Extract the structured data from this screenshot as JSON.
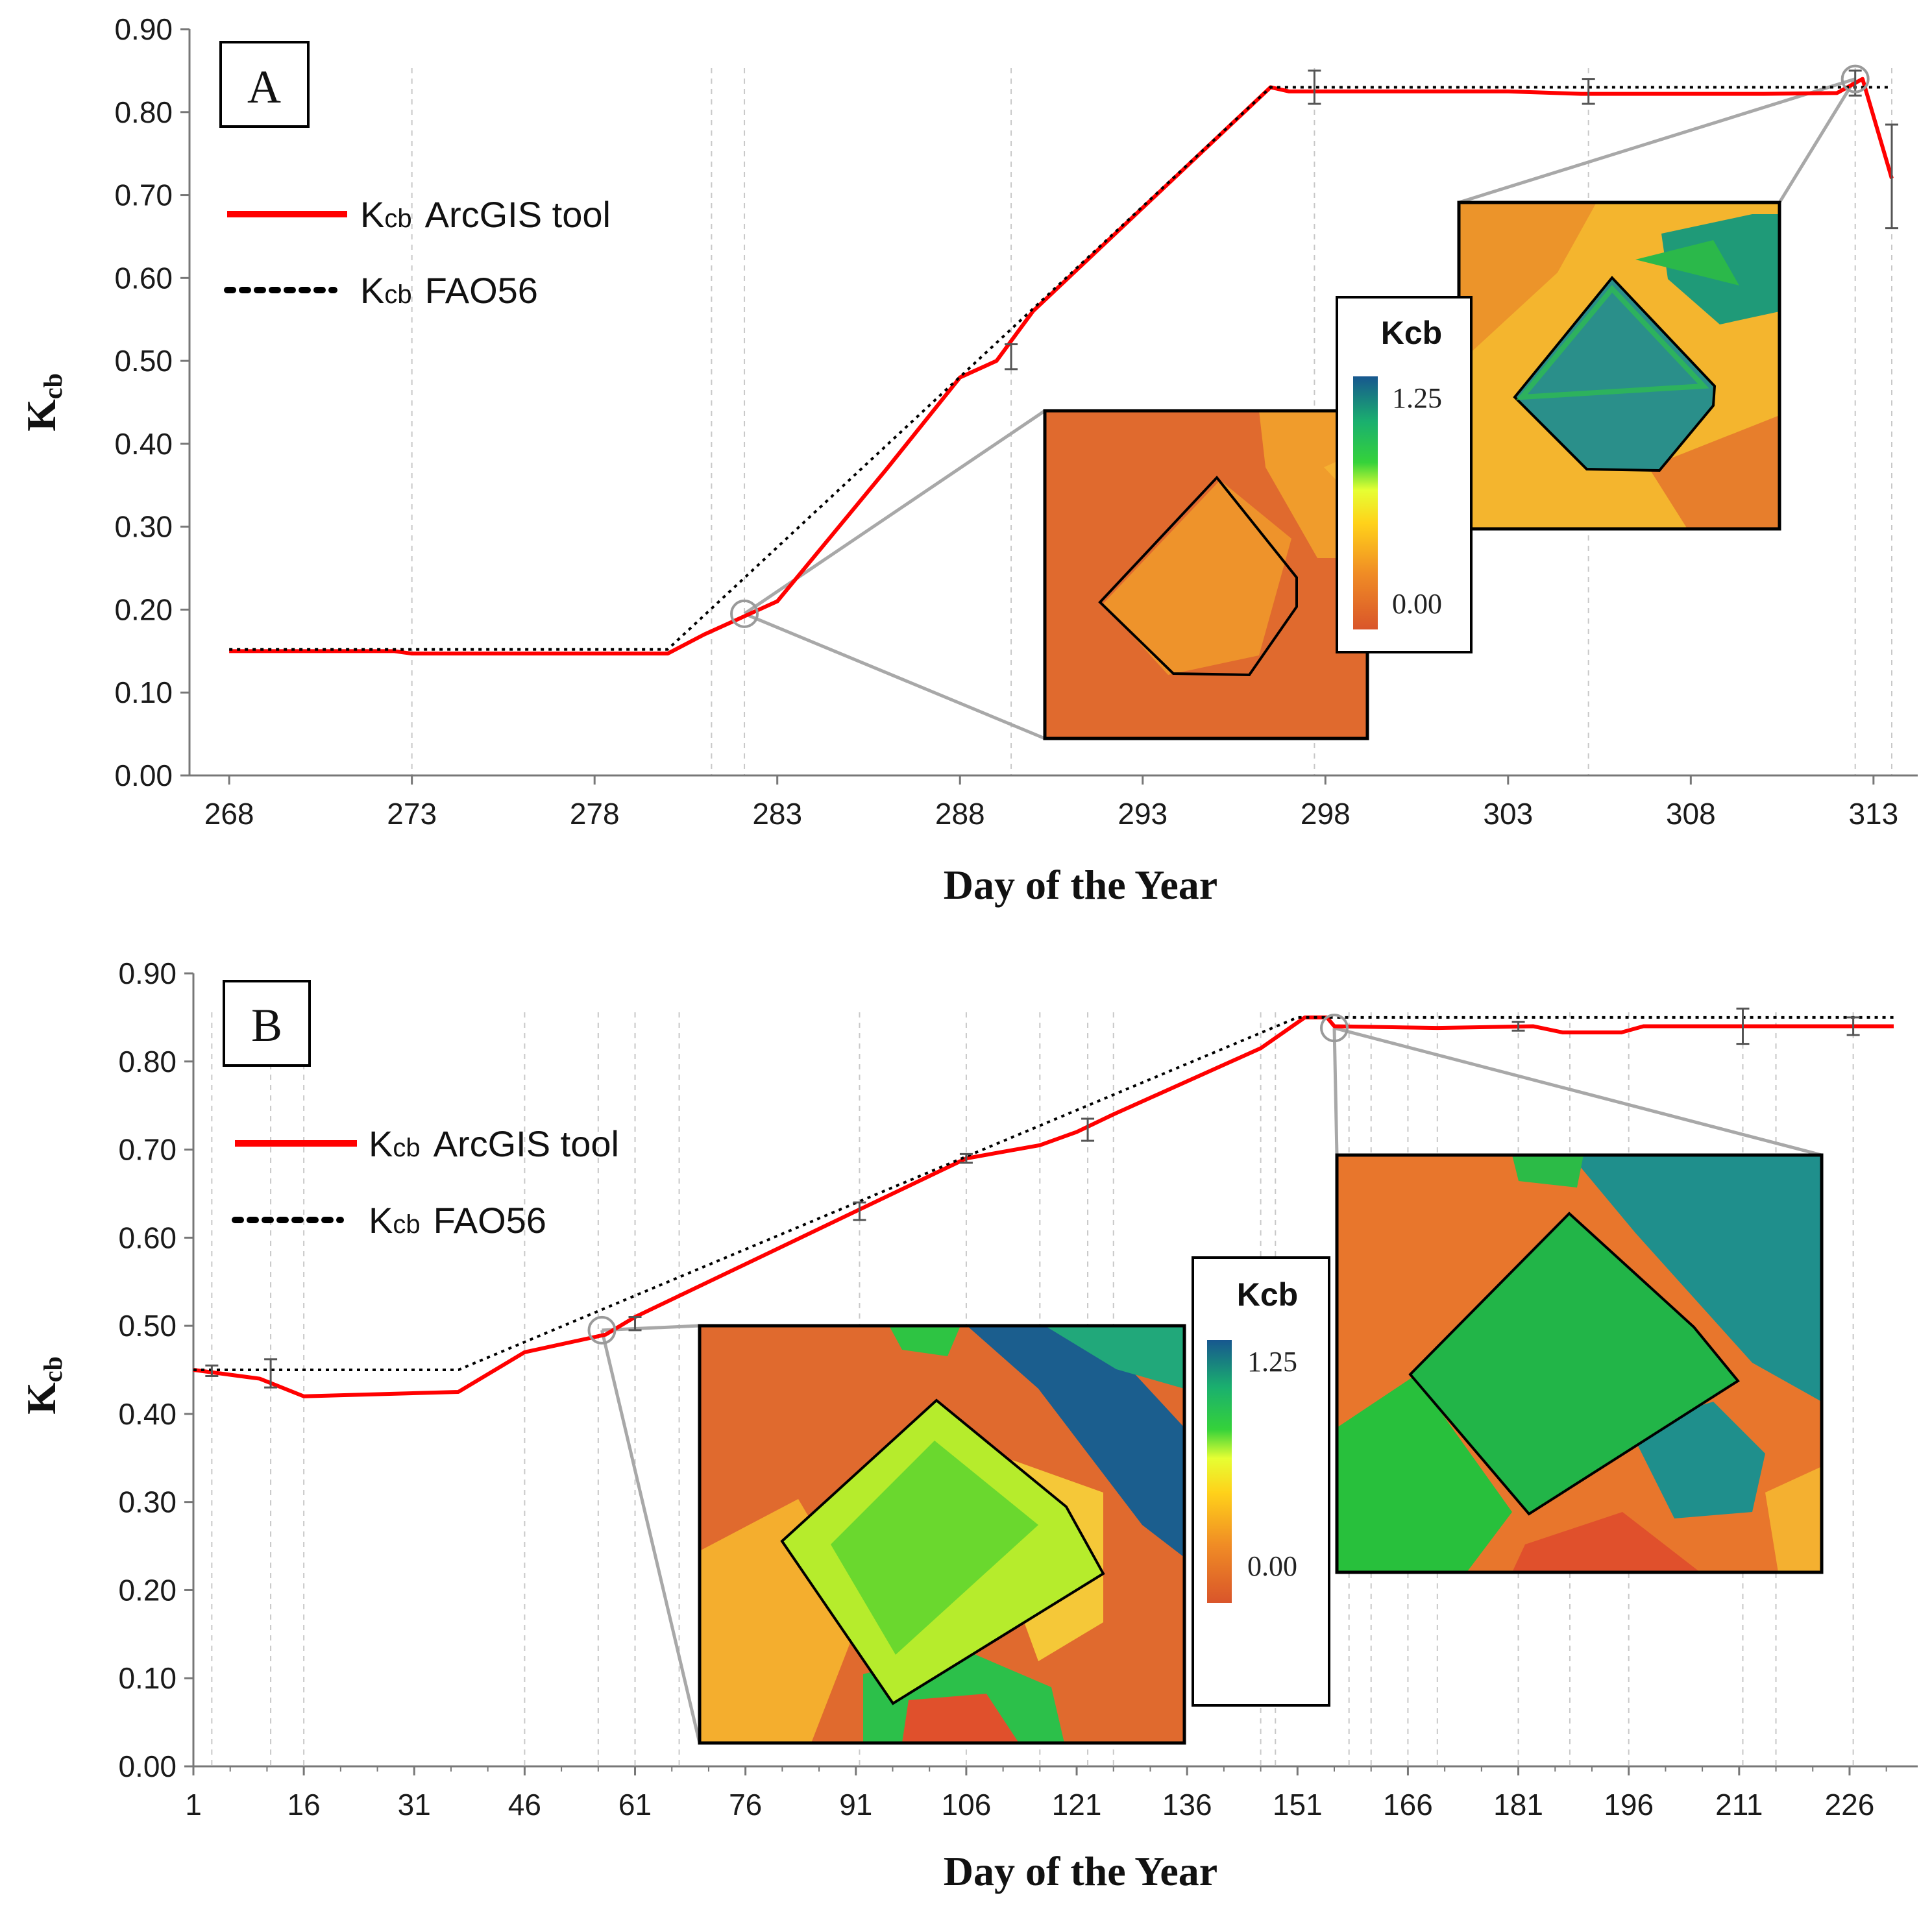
{
  "chart_data": [
    {
      "panel": "A",
      "type": "line",
      "xlabel": "Day of the Year",
      "ylabel": "Kcb",
      "ylabel_main": "K",
      "ylabel_sub": "cb",
      "xlim": [
        267.5,
        313.5
      ],
      "ylim": [
        0,
        0.9
      ],
      "xticks": [
        "268",
        "273",
        "278",
        "283",
        "288",
        "293",
        "298",
        "303",
        "308",
        "313"
      ],
      "yticks": [
        "0.00",
        "0.10",
        "0.20",
        "0.30",
        "0.40",
        "0.50",
        "0.60",
        "0.70",
        "0.80",
        "0.90"
      ],
      "legend": [
        {
          "key": "arcgis",
          "k": "K",
          "sub": "cb",
          "label": "ArcGIS tool",
          "color": "#ff0000",
          "style": "solid"
        },
        {
          "key": "fao56",
          "k": "K",
          "sub": "cb",
          "label": "FAO56",
          "color": "#000000",
          "style": "dotted"
        }
      ],
      "series": [
        {
          "name": "Kcb ArcGIS tool",
          "color": "#ff0000",
          "x": [
            268,
            272.5,
            273,
            280,
            281,
            282,
            283,
            286,
            288,
            289,
            290,
            296.5,
            297,
            303,
            305,
            310,
            312,
            312.7,
            313.5
          ],
          "y": [
            0.15,
            0.15,
            0.147,
            0.147,
            0.17,
            0.19,
            0.21,
            0.37,
            0.48,
            0.5,
            0.56,
            0.83,
            0.825,
            0.825,
            0.822,
            0.822,
            0.823,
            0.84,
            0.72
          ]
        },
        {
          "name": "Kcb FAO56",
          "color": "#000000",
          "x": [
            268,
            280,
            296.5,
            313.5
          ],
          "y": [
            0.152,
            0.152,
            0.83,
            0.83
          ]
        }
      ],
      "error_bars": [
        {
          "x": 289.4,
          "low": 0.49,
          "high": 0.52
        },
        {
          "x": 297.7,
          "low": 0.81,
          "high": 0.85
        },
        {
          "x": 305.2,
          "low": 0.81,
          "high": 0.84
        },
        {
          "x": 312.5,
          "low": 0.82,
          "high": 0.85
        },
        {
          "x": 313.5,
          "low": 0.66,
          "high": 0.785
        }
      ],
      "dates": [
        273,
        281.2,
        282.1,
        289.4,
        297.7,
        305.2,
        312.5,
        313.5
      ],
      "zoom_points": [
        {
          "x": 282.1,
          "y": 0.195
        },
        {
          "x": 312.5,
          "y": 0.84
        }
      ],
      "colorbar": {
        "title": "Kcb",
        "max": "1.25",
        "min": "0.00"
      }
    },
    {
      "panel": "B",
      "type": "line",
      "xlabel": "Day of the Year",
      "ylabel": "Kcb",
      "ylabel_main": "K",
      "ylabel_sub": "cb",
      "xlim": [
        1,
        232
      ],
      "ylim": [
        0,
        0.9
      ],
      "xticks": [
        "1",
        "16",
        "31",
        "46",
        "61",
        "76",
        "91",
        "106",
        "121",
        "136",
        "151",
        "166",
        "181",
        "196",
        "211",
        "226"
      ],
      "yticks": [
        "0.00",
        "0.10",
        "0.20",
        "0.30",
        "0.40",
        "0.50",
        "0.60",
        "0.70",
        "0.80",
        "0.90"
      ],
      "legend": [
        {
          "key": "arcgis",
          "k": "K",
          "sub": "cb",
          "label": "ArcGIS tool",
          "color": "#ff0000",
          "style": "solid"
        },
        {
          "key": "fao56",
          "k": "K",
          "sub": "cb",
          "label": "FAO56",
          "color": "#000000",
          "style": "dotted"
        }
      ],
      "series": [
        {
          "name": "Kcb ArcGIS tool",
          "color": "#ff0000",
          "x": [
            1,
            10,
            16,
            37,
            46,
            57,
            61,
            91,
            106,
            116,
            121,
            126,
            146,
            152,
            155,
            156,
            170,
            183,
            187,
            195,
            198,
            232
          ],
          "y": [
            0.45,
            0.44,
            0.42,
            0.425,
            0.47,
            0.49,
            0.51,
            0.63,
            0.69,
            0.705,
            0.72,
            0.74,
            0.815,
            0.85,
            0.85,
            0.84,
            0.838,
            0.84,
            0.833,
            0.833,
            0.84,
            0.84
          ]
        },
        {
          "name": "Kcb FAO56",
          "color": "#000000",
          "x": [
            1,
            37,
            151,
            232
          ],
          "y": [
            0.45,
            0.45,
            0.85,
            0.85
          ]
        }
      ],
      "error_bars": [
        {
          "x": 3.5,
          "low": 0.443,
          "high": 0.455
        },
        {
          "x": 11.5,
          "low": 0.43,
          "high": 0.462
        },
        {
          "x": 61,
          "low": 0.495,
          "high": 0.51
        },
        {
          "x": 91.5,
          "low": 0.62,
          "high": 0.64
        },
        {
          "x": 106,
          "low": 0.685,
          "high": 0.695
        },
        {
          "x": 122.5,
          "low": 0.71,
          "high": 0.735
        },
        {
          "x": 181,
          "low": 0.835,
          "high": 0.845
        },
        {
          "x": 211.5,
          "low": 0.82,
          "high": 0.86
        },
        {
          "x": 226.5,
          "low": 0.83,
          "high": 0.85
        }
      ],
      "dates": [
        3.5,
        11.5,
        16,
        46,
        56,
        61,
        67,
        91.5,
        106,
        116,
        122.5,
        126,
        146,
        148,
        158,
        161,
        166,
        170,
        181,
        188,
        196,
        211.5,
        216,
        226.5
      ],
      "zoom_points": [
        {
          "x": 56.5,
          "y": 0.495
        },
        {
          "x": 156,
          "y": 0.838
        }
      ],
      "colorbar": {
        "title": "Kcb",
        "max": "1.25",
        "min": "0.00"
      }
    }
  ],
  "panel_labels": {
    "a": "A",
    "b": "B"
  }
}
